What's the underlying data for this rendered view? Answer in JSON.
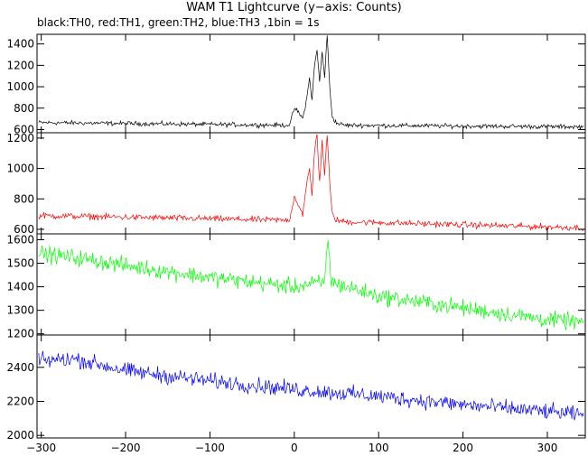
{
  "chart_data": {
    "type": "line",
    "title": "WAM T1 Lightcurve (y−axis: Counts)",
    "subtitle": "black:TH0, red:TH1, green:TH2, blue:TH3 ,1bin = 1s",
    "xlabel": "",
    "ylabel": "",
    "xlim": [
      -305,
      345
    ],
    "x_ticks": [
      -300,
      -200,
      -100,
      0,
      100,
      200,
      300
    ],
    "x_tick_labels": [
      "−300",
      "−200",
      "−100",
      "0",
      "100",
      "200",
      "300"
    ],
    "bin_seconds": 1,
    "series": [
      {
        "name": "TH0",
        "color": "#000000",
        "ylim": [
          570,
          1490
        ],
        "y_ticks": [
          600,
          800,
          1000,
          1200,
          1400
        ],
        "baseline": {
          "x": [
            -300,
            340
          ],
          "y": [
            665,
            625
          ]
        },
        "noise_amplitude": 18,
        "x": [
          -300,
          -10,
          -5,
          0,
          5,
          10,
          15,
          18,
          21,
          24,
          27,
          30,
          33,
          36,
          39,
          42,
          45,
          50,
          60,
          340
        ],
        "y": [
          665,
          640,
          650,
          800,
          760,
          700,
          900,
          1080,
          880,
          1200,
          1340,
          1050,
          1320,
          1100,
          1480,
          1000,
          720,
          660,
          640,
          625
        ]
      },
      {
        "name": "TH1",
        "color": "#ff0000",
        "ylim": [
          570,
          1235
        ],
        "y_ticks": [
          600,
          800,
          1000,
          1200
        ],
        "baseline": {
          "x": [
            -300,
            340
          ],
          "y": [
            690,
            610
          ]
        },
        "noise_amplitude": 18,
        "x": [
          -300,
          -10,
          -5,
          0,
          5,
          10,
          15,
          18,
          21,
          24,
          27,
          30,
          33,
          36,
          39,
          42,
          45,
          50,
          60,
          340
        ],
        "y": [
          690,
          660,
          670,
          820,
          760,
          700,
          900,
          1000,
          820,
          1120,
          1230,
          900,
          1180,
          960,
          1230,
          900,
          700,
          660,
          650,
          610
        ]
      },
      {
        "name": "TH2",
        "color": "#00ff00",
        "ylim": [
          1195,
          1625
        ],
        "y_ticks": [
          1200,
          1300,
          1400,
          1500,
          1600
        ],
        "baseline": {
          "x": [
            -300,
            340
          ],
          "y": [
            1540,
            1250
          ]
        },
        "noise_amplitude": 30,
        "x": [
          -300,
          -250,
          -200,
          -100,
          0,
          36,
          40,
          44,
          100,
          200,
          300,
          340
        ],
        "y": [
          1540,
          1520,
          1490,
          1440,
          1400,
          1420,
          1610,
          1420,
          1360,
          1310,
          1260,
          1250
        ]
      },
      {
        "name": "TH3",
        "color": "#0000ff",
        "ylim": [
          1985,
          2590
        ],
        "y_ticks": [
          2000,
          2200,
          2400
        ],
        "baseline": {
          "x": [
            -300,
            340
          ],
          "y": [
            2440,
            2120
          ]
        },
        "noise_amplitude": 40,
        "x": [
          -300,
          -260,
          -200,
          -100,
          0,
          100,
          200,
          300,
          340
        ],
        "y": [
          2440,
          2450,
          2380,
          2320,
          2270,
          2230,
          2180,
          2140,
          2120
        ]
      }
    ]
  }
}
